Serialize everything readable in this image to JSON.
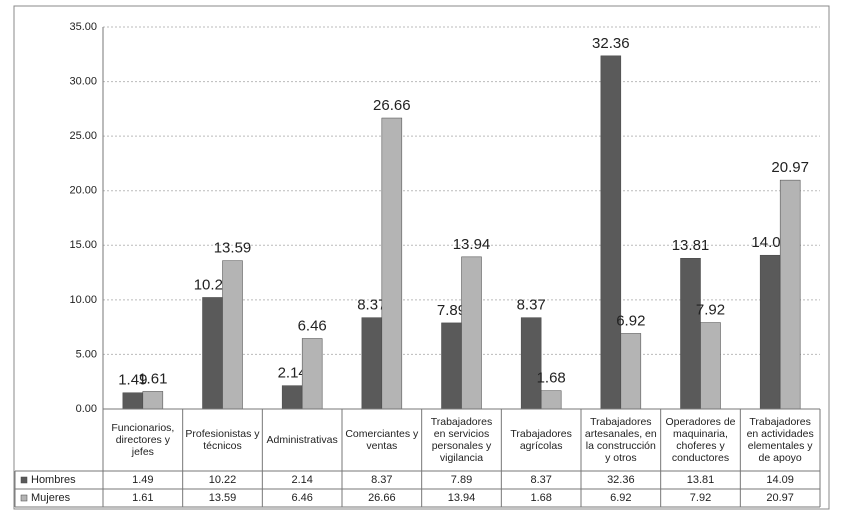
{
  "chart_data": {
    "type": "bar",
    "categories": [
      "Funcionarios, directores y jefes",
      "Profesionistas y técnicos",
      "Administrativas",
      "Comerciantes y ventas",
      "Trabajadores en servicios personales y vigilancia",
      "Trabajadores agrícolas",
      "Trabajadores artesanales, en la construcción y otros",
      "Operadores de maquinaria, choferes y conductores",
      "Trabajadores en actividades elementales y de apoyo"
    ],
    "series": [
      {
        "name": "Hombres",
        "color": "#5a5a5a",
        "values": [
          1.49,
          10.22,
          2.14,
          8.37,
          7.89,
          8.37,
          32.36,
          13.81,
          14.09
        ]
      },
      {
        "name": "Mujeres",
        "color": "#b4b4b4",
        "values": [
          1.61,
          13.59,
          6.46,
          26.66,
          13.94,
          1.68,
          6.92,
          7.92,
          20.97
        ]
      }
    ],
    "ylim": [
      0,
      35
    ],
    "yticks": [
      {
        "value": 0,
        "label": "0.00"
      },
      {
        "value": 5,
        "label": "5.00"
      },
      {
        "value": 10,
        "label": "10.00"
      },
      {
        "value": 15,
        "label": "15.00"
      },
      {
        "value": 20,
        "label": "20.00"
      },
      {
        "value": 25,
        "label": "25.00"
      },
      {
        "value": 30,
        "label": "30.00"
      },
      {
        "value": 35,
        "label": "35.00"
      }
    ],
    "grid": true
  }
}
